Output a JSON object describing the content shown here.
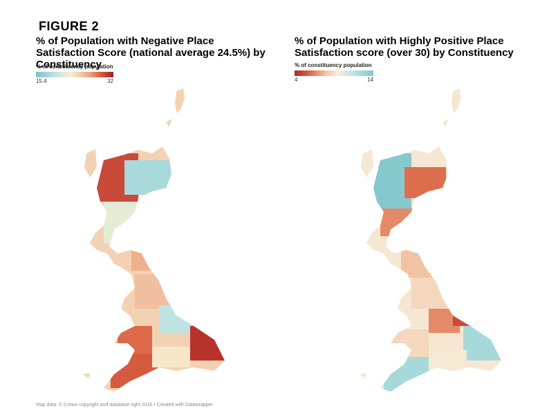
{
  "figure_label": "FIGURE 2",
  "left_map": {
    "title": "% of Population with Negative Place Satisfaction Score (national average 24.5%) by Constituency",
    "legend": {
      "title": "% of constituency population",
      "min": "15.4",
      "max": "32",
      "colors": [
        "#7cc3c9",
        "#bfe3e3",
        "#f7edd1",
        "#f1b58d",
        "#d8593b",
        "#9c1b22"
      ]
    }
  },
  "right_map": {
    "title": "% of Population with Highly Positive Place Satisfaction score (over 30) by Constituency",
    "legend": {
      "title": "% of constituency population",
      "min": "4",
      "max": "14",
      "colors": [
        "#b2242a",
        "#df6a4b",
        "#f5c6a2",
        "#f5f0dc",
        "#bfe3e3",
        "#82c7cc"
      ]
    }
  },
  "credit": "Map data: © Crown copyright and database right 2018 • Created with Datawrapper"
}
